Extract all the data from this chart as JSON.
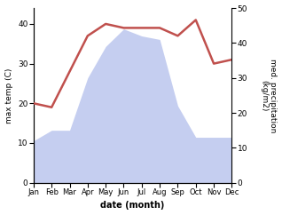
{
  "months": [
    "Jan",
    "Feb",
    "Mar",
    "Apr",
    "May",
    "Jun",
    "Jul",
    "Aug",
    "Sep",
    "Oct",
    "Nov",
    "Dec"
  ],
  "temperature": [
    20,
    19,
    28,
    37,
    40,
    39,
    39,
    39,
    37,
    41,
    30,
    31
  ],
  "precipitation": [
    12,
    15,
    15,
    30,
    39,
    44,
    42,
    41,
    22,
    13,
    13,
    13
  ],
  "temp_color": "#c0504d",
  "precip_fill_color": "#c5cef0",
  "xlabel": "date (month)",
  "ylabel_left": "max temp (C)",
  "ylabel_right": "med. precipitation\n(kg/m2)",
  "ylim_left": [
    0,
    44
  ],
  "ylim_right": [
    0,
    50
  ],
  "yticks_left": [
    0,
    10,
    20,
    30,
    40
  ],
  "yticks_right": [
    0,
    10,
    20,
    30,
    40,
    50
  ],
  "background_color": "#ffffff"
}
